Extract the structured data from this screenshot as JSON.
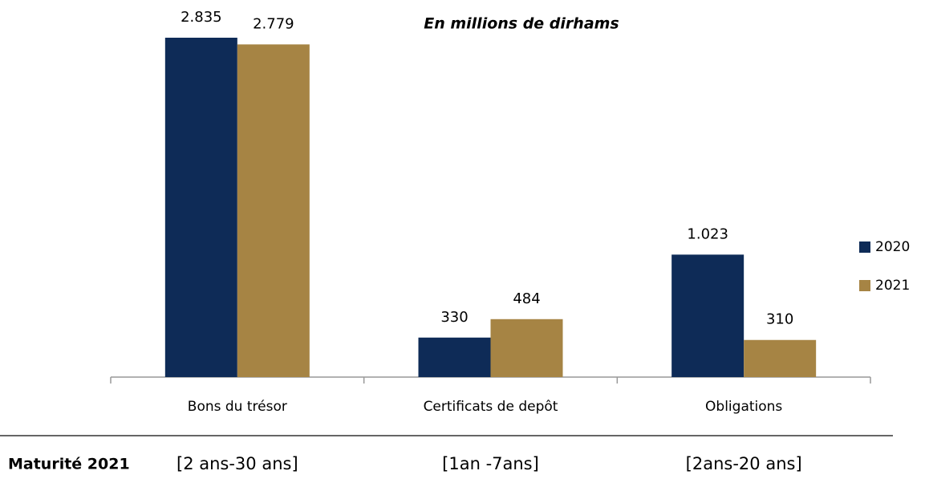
{
  "chart_data": {
    "type": "bar",
    "title": "En millions de dirhams",
    "categories": [
      "Bons du trésor",
      "Certificats de depôt",
      "Obligations"
    ],
    "series": [
      {
        "name": "2020",
        "color": "#0e2b57",
        "values": [
          2835,
          330,
          1023
        ],
        "value_labels": [
          "2.835",
          "330",
          "1.023"
        ]
      },
      {
        "name": "2021",
        "color": "#a68444",
        "values": [
          2779,
          484,
          310
        ],
        "value_labels": [
          "2.779",
          "484",
          "310"
        ]
      }
    ],
    "legend": "right",
    "maturity": {
      "label": "Maturité 2021",
      "values": [
        "[2 ans-30 ans]",
        "[1an -7ans]",
        "[2ans-20 ans]"
      ]
    }
  }
}
